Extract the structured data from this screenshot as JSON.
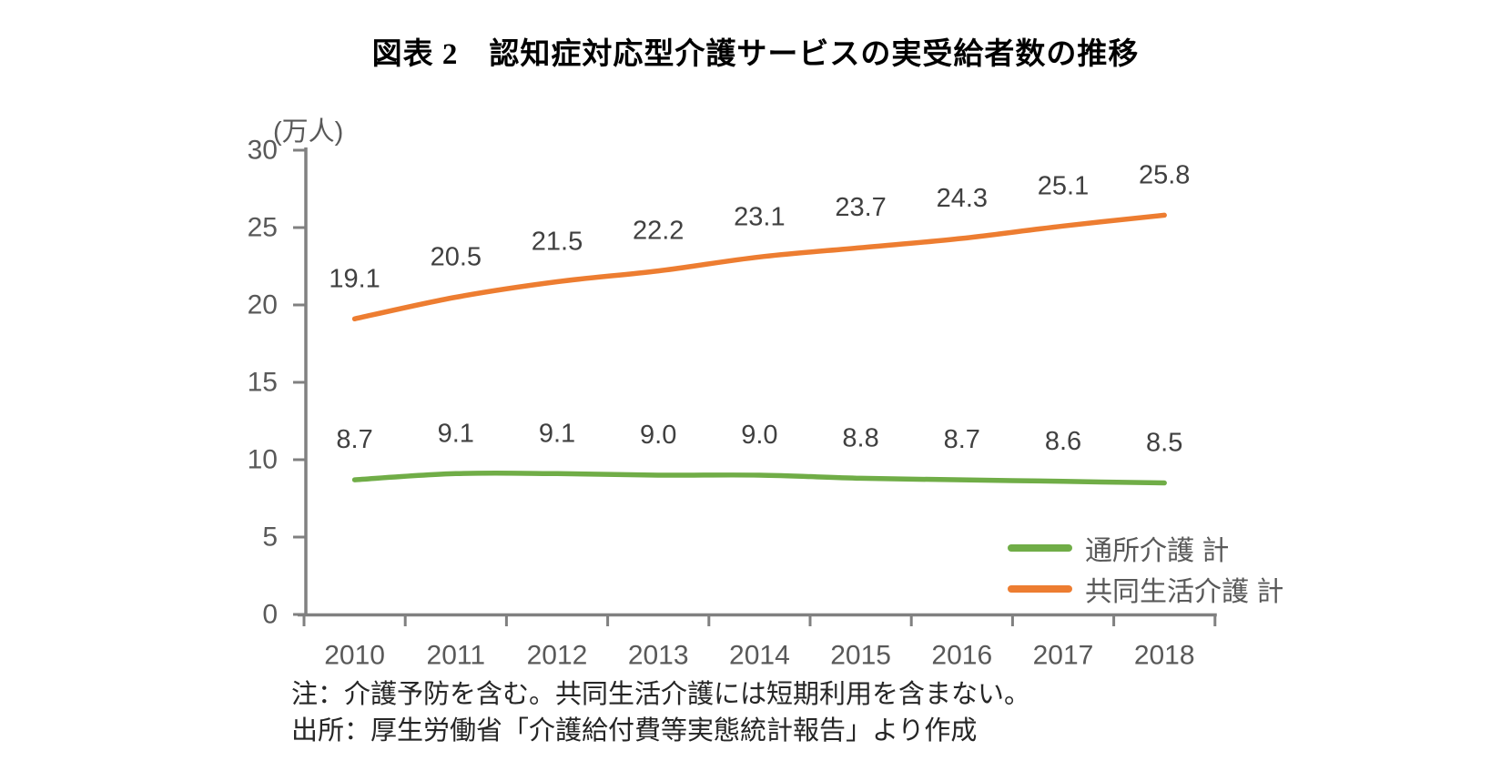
{
  "title": "図表 2　認知症対応型介護サービスの実受給者数の推移",
  "chart_data": {
    "type": "line",
    "title": "図表 2　認知症対応型介護サービスの実受給者数の推移",
    "categories": [
      "2010",
      "2011",
      "2012",
      "2013",
      "2014",
      "2015",
      "2016",
      "2017",
      "2018"
    ],
    "series": [
      {
        "name": "通所介護 計",
        "color": "#70AD47",
        "values": [
          8.7,
          9.1,
          9.1,
          9.0,
          9.0,
          8.8,
          8.7,
          8.6,
          8.5
        ]
      },
      {
        "name": "共同生活介護 計",
        "color": "#ED7D31",
        "values": [
          19.1,
          20.5,
          21.5,
          22.2,
          23.1,
          23.7,
          24.3,
          25.1,
          25.8
        ]
      }
    ],
    "ylabel": "(万人)",
    "xlabel": "",
    "ylim": [
      0,
      30
    ],
    "y_ticks": [
      0,
      5,
      10,
      15,
      20,
      25,
      30
    ],
    "grid": false,
    "data_labels": true,
    "line_style": "smooth",
    "legend_position": "inside-bottom-right"
  },
  "footnotes": {
    "note": "注：介護予防を含む。共同生活介護には短期利用を含まない。",
    "source": "出所：厚生労働省「介護給付費等実態統計報告」より作成"
  },
  "colors": {
    "axis": "#808080",
    "tick_label": "#595959",
    "data_label": "#404040",
    "note_text": "#262626",
    "title_text": "#000000"
  }
}
